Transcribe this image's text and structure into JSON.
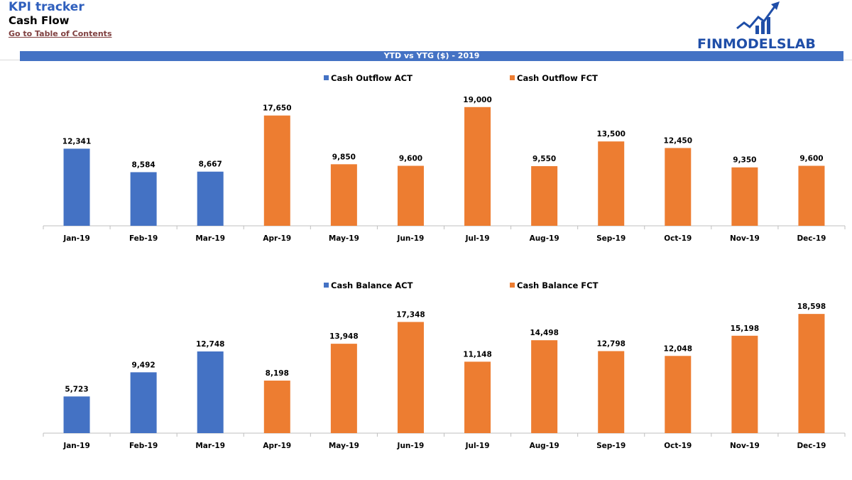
{
  "header": {
    "title": "KPI tracker",
    "subtitle": "Cash Flow",
    "toc_link": "Go to Table of Contents",
    "logo_text": "FINMODELSLAB",
    "banner": "YTD vs YTG ($) - 2019"
  },
  "colors": {
    "act": "#4472c4",
    "fct": "#ed7d31",
    "axis": "#bfbfbf"
  },
  "chart_data": [
    {
      "type": "bar",
      "categories": [
        "Jan-19",
        "Feb-19",
        "Mar-19",
        "Apr-19",
        "May-19",
        "Jun-19",
        "Jul-19",
        "Aug-19",
        "Sep-19",
        "Oct-19",
        "Nov-19",
        "Dec-19"
      ],
      "series": [
        {
          "name": "Cash Outflow ACT",
          "values": [
            12341,
            8584,
            8667,
            null,
            null,
            null,
            null,
            null,
            null,
            null,
            null,
            null
          ]
        },
        {
          "name": "Cash Outflow FCT",
          "values": [
            null,
            null,
            null,
            17650,
            9850,
            9600,
            19000,
            9550,
            13500,
            12450,
            9350,
            9600
          ]
        }
      ],
      "data_labels": [
        "12,341",
        "8,584",
        "8,667",
        "17,650",
        "9,850",
        "9,600",
        "19,000",
        "9,550",
        "13,500",
        "12,450",
        "9,350",
        "9,600"
      ],
      "ylim": [
        0,
        20000
      ],
      "legend": "top",
      "grid": false
    },
    {
      "type": "bar",
      "categories": [
        "Jan-19",
        "Feb-19",
        "Mar-19",
        "Apr-19",
        "May-19",
        "Jun-19",
        "Jul-19",
        "Aug-19",
        "Sep-19",
        "Oct-19",
        "Nov-19",
        "Dec-19"
      ],
      "series": [
        {
          "name": "Cash Balance ACT",
          "values": [
            5723,
            9492,
            12748,
            null,
            null,
            null,
            null,
            null,
            null,
            null,
            null,
            null
          ]
        },
        {
          "name": "Cash Balance FCT",
          "values": [
            null,
            null,
            null,
            8198,
            13948,
            17348,
            11148,
            14498,
            12798,
            12048,
            15198,
            18598
          ]
        }
      ],
      "data_labels": [
        "5,723",
        "9,492",
        "12,748",
        "8,198",
        "13,948",
        "17,348",
        "11,148",
        "14,498",
        "12,798",
        "12,048",
        "15,198",
        "18,598"
      ],
      "ylim": [
        0,
        19500
      ],
      "legend": "top",
      "grid": false
    }
  ]
}
